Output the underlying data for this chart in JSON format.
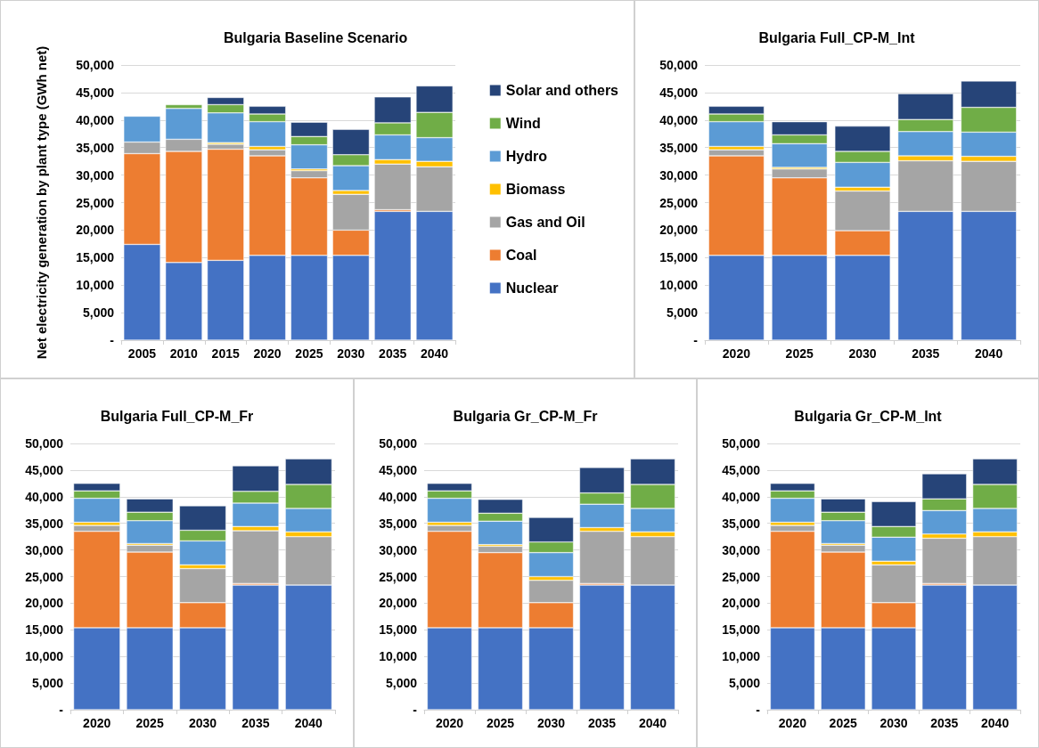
{
  "chart_data": [
    {
      "type": "bar",
      "title": "Bulgaria Baseline Scenario",
      "ylabel": "Net electricity generation by plant type (GWh net)",
      "categories": [
        "2005",
        "2010",
        "2015",
        "2020",
        "2025",
        "2030",
        "2035",
        "2040"
      ],
      "stacked": true,
      "grid": "y",
      "legend": "right",
      "ylim": [
        0,
        50000
      ],
      "yticks": [
        {
          "value": 0,
          "label": "-"
        },
        {
          "value": 5000,
          "label": "5,000"
        },
        {
          "value": 10000,
          "label": "10,000"
        },
        {
          "value": 15000,
          "label": "15,000"
        },
        {
          "value": 20000,
          "label": "20,000"
        },
        {
          "value": 25000,
          "label": "25,000"
        },
        {
          "value": 30000,
          "label": "30,000"
        },
        {
          "value": 35000,
          "label": "35,000"
        },
        {
          "value": 40000,
          "label": "40,000"
        },
        {
          "value": 45000,
          "label": "45,000"
        },
        {
          "value": 50000,
          "label": "50,000"
        }
      ],
      "series": [
        {
          "name": "Nuclear",
          "color": "#4472c4",
          "values": [
            17400,
            14100,
            14500,
            15400,
            15400,
            15400,
            23400,
            23400
          ]
        },
        {
          "name": "Coal",
          "color": "#ed7d31",
          "values": [
            16500,
            20200,
            20200,
            18100,
            14100,
            4600,
            300,
            0
          ]
        },
        {
          "name": "Gas and Oil",
          "color": "#a5a5a5",
          "values": [
            2100,
            2200,
            900,
            1100,
            1300,
            6500,
            8300,
            8100
          ]
        },
        {
          "name": "Biomass",
          "color": "#ffc000",
          "values": [
            0,
            0,
            300,
            600,
            300,
            700,
            800,
            1000
          ]
        },
        {
          "name": "Hydro",
          "color": "#5b9bd5",
          "values": [
            4700,
            5600,
            5400,
            4500,
            4400,
            4500,
            4500,
            4300
          ]
        },
        {
          "name": "Wind",
          "color": "#70ad47",
          "values": [
            0,
            700,
            1500,
            1400,
            1500,
            2000,
            2200,
            4600
          ]
        },
        {
          "name": "Solar and others",
          "color": "#264478",
          "values": [
            0,
            0,
            1300,
            1400,
            2600,
            4600,
            4700,
            4800
          ]
        }
      ]
    },
    {
      "type": "bar",
      "title": "Bulgaria Full_CP-M_Int",
      "categories": [
        "2020",
        "2025",
        "2030",
        "2035",
        "2040"
      ],
      "stacked": true,
      "grid": "y",
      "ylim": [
        0,
        50000
      ],
      "yticks": [
        {
          "value": 0,
          "label": "-"
        },
        {
          "value": 5000,
          "label": "5,000"
        },
        {
          "value": 10000,
          "label": "10,000"
        },
        {
          "value": 15000,
          "label": "15,000"
        },
        {
          "value": 20000,
          "label": "20,000"
        },
        {
          "value": 25000,
          "label": "25,000"
        },
        {
          "value": 30000,
          "label": "30,000"
        },
        {
          "value": 35000,
          "label": "35,000"
        },
        {
          "value": 40000,
          "label": "40,000"
        },
        {
          "value": 45000,
          "label": "45,000"
        },
        {
          "value": 50000,
          "label": "50,000"
        }
      ],
      "series": [
        {
          "color": "#4472c4",
          "values": [
            15400,
            15400,
            15400,
            23400,
            23400
          ]
        },
        {
          "color": "#ed7d31",
          "values": [
            18100,
            14100,
            4500,
            0,
            0
          ]
        },
        {
          "color": "#a5a5a5",
          "values": [
            1100,
            1600,
            7200,
            9200,
            9100
          ]
        },
        {
          "color": "#ffc000",
          "values": [
            600,
            300,
            700,
            900,
            900
          ]
        },
        {
          "color": "#5b9bd5",
          "values": [
            4500,
            4300,
            4500,
            4400,
            4400
          ]
        },
        {
          "color": "#70ad47",
          "values": [
            1400,
            1600,
            2000,
            2200,
            4500
          ]
        },
        {
          "color": "#264478",
          "values": [
            1400,
            2400,
            4600,
            4700,
            4800
          ]
        }
      ]
    },
    {
      "type": "bar",
      "title": "Bulgaria Full_CP-M_Fr",
      "categories": [
        "2020",
        "2025",
        "2030",
        "2035",
        "2040"
      ],
      "stacked": true,
      "grid": "y",
      "ylim": [
        0,
        50000
      ],
      "yticks": [
        {
          "value": 0,
          "label": "-"
        },
        {
          "value": 5000,
          "label": "5,000"
        },
        {
          "value": 10000,
          "label": "10,000"
        },
        {
          "value": 15000,
          "label": "15,000"
        },
        {
          "value": 20000,
          "label": "20,000"
        },
        {
          "value": 25000,
          "label": "25,000"
        },
        {
          "value": 30000,
          "label": "30,000"
        },
        {
          "value": 35000,
          "label": "35,000"
        },
        {
          "value": 40000,
          "label": "40,000"
        },
        {
          "value": 45000,
          "label": "45,000"
        },
        {
          "value": 50000,
          "label": "50,000"
        }
      ],
      "series": [
        {
          "color": "#4472c4",
          "values": [
            15400,
            15400,
            15400,
            23400,
            23400
          ]
        },
        {
          "color": "#ed7d31",
          "values": [
            18100,
            14200,
            4700,
            300,
            0
          ]
        },
        {
          "color": "#a5a5a5",
          "values": [
            1100,
            1300,
            6400,
            9900,
            9100
          ]
        },
        {
          "color": "#ffc000",
          "values": [
            600,
            300,
            700,
            800,
            900
          ]
        },
        {
          "color": "#5b9bd5",
          "values": [
            4500,
            4300,
            4500,
            4400,
            4400
          ]
        },
        {
          "color": "#70ad47",
          "values": [
            1400,
            1600,
            2000,
            2200,
            4500
          ]
        },
        {
          "color": "#264478",
          "values": [
            1400,
            2500,
            4600,
            4800,
            4800
          ]
        }
      ]
    },
    {
      "type": "bar",
      "title": "Bulgaria Gr_CP-M_Fr",
      "categories": [
        "2020",
        "2025",
        "2030",
        "2035",
        "2040"
      ],
      "stacked": true,
      "grid": "y",
      "ylim": [
        0,
        50000
      ],
      "yticks": [
        {
          "value": 0,
          "label": "-"
        },
        {
          "value": 5000,
          "label": "5,000"
        },
        {
          "value": 10000,
          "label": "10,000"
        },
        {
          "value": 15000,
          "label": "15,000"
        },
        {
          "value": 20000,
          "label": "20,000"
        },
        {
          "value": 25000,
          "label": "25,000"
        },
        {
          "value": 30000,
          "label": "30,000"
        },
        {
          "value": 35000,
          "label": "35,000"
        },
        {
          "value": 40000,
          "label": "40,000"
        },
        {
          "value": 45000,
          "label": "45,000"
        },
        {
          "value": 50000,
          "label": "50,000"
        }
      ],
      "series": [
        {
          "color": "#4472c4",
          "values": [
            15400,
            15400,
            15400,
            23400,
            23400
          ]
        },
        {
          "color": "#ed7d31",
          "values": [
            18100,
            14100,
            4700,
            300,
            0
          ]
        },
        {
          "color": "#a5a5a5",
          "values": [
            1100,
            1200,
            4200,
            9800,
            9100
          ]
        },
        {
          "color": "#ffc000",
          "values": [
            600,
            300,
            700,
            700,
            900
          ]
        },
        {
          "color": "#5b9bd5",
          "values": [
            4500,
            4400,
            4500,
            4400,
            4400
          ]
        },
        {
          "color": "#70ad47",
          "values": [
            1400,
            1500,
            2000,
            2100,
            4500
          ]
        },
        {
          "color": "#264478",
          "values": [
            1400,
            2600,
            4600,
            4800,
            4800
          ]
        }
      ]
    },
    {
      "type": "bar",
      "title": "Bulgaria Gr_CP-M_Int",
      "categories": [
        "2020",
        "2025",
        "2030",
        "2035",
        "2040"
      ],
      "stacked": true,
      "grid": "y",
      "ylim": [
        0,
        50000
      ],
      "yticks": [
        {
          "value": 0,
          "label": "-"
        },
        {
          "value": 5000,
          "label": "5,000"
        },
        {
          "value": 10000,
          "label": "10,000"
        },
        {
          "value": 15000,
          "label": "15,000"
        },
        {
          "value": 20000,
          "label": "20,000"
        },
        {
          "value": 25000,
          "label": "25,000"
        },
        {
          "value": 30000,
          "label": "30,000"
        },
        {
          "value": 35000,
          "label": "35,000"
        },
        {
          "value": 40000,
          "label": "40,000"
        },
        {
          "value": 45000,
          "label": "45,000"
        },
        {
          "value": 50000,
          "label": "50,000"
        }
      ],
      "series": [
        {
          "color": "#4472c4",
          "values": [
            15400,
            15400,
            15400,
            23400,
            23400
          ]
        },
        {
          "color": "#ed7d31",
          "values": [
            18100,
            14200,
            4700,
            300,
            0
          ]
        },
        {
          "color": "#a5a5a5",
          "values": [
            1100,
            1300,
            7100,
            8500,
            9100
          ]
        },
        {
          "color": "#ffc000",
          "values": [
            600,
            300,
            700,
            800,
            900
          ]
        },
        {
          "color": "#5b9bd5",
          "values": [
            4500,
            4300,
            4500,
            4400,
            4400
          ]
        },
        {
          "color": "#70ad47",
          "values": [
            1400,
            1600,
            2000,
            2200,
            4500
          ]
        },
        {
          "color": "#264478",
          "values": [
            1400,
            2500,
            4700,
            4700,
            4800
          ]
        }
      ]
    }
  ]
}
